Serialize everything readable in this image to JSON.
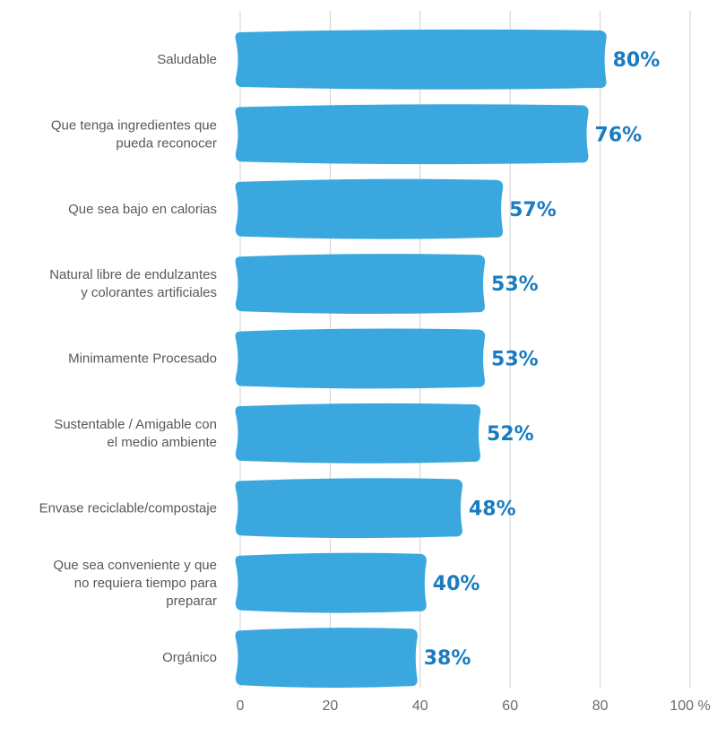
{
  "chart_data": {
    "type": "bar",
    "orientation": "horizontal",
    "categories": [
      [
        "Saludable"
      ],
      [
        "Que tenga ingredientes que",
        "pueda reconocer"
      ],
      [
        "Que sea bajo en calorias"
      ],
      [
        "Natural libre de endulzantes",
        "y colorantes artificiales"
      ],
      [
        "Minimamente Procesado"
      ],
      [
        "Sustentable / Amigable con",
        "el medio ambiente"
      ],
      [
        "Envase reciclable/compostaje"
      ],
      [
        "Que sea conveniente y que",
        "no requiera tiempo para",
        "preparar"
      ],
      [
        "Orgánico"
      ]
    ],
    "values": [
      80,
      76,
      57,
      53,
      53,
      52,
      48,
      40,
      38
    ],
    "value_labels": [
      "80%",
      "76%",
      "57%",
      "53%",
      "53%",
      "52%",
      "48%",
      "40%",
      "38%"
    ],
    "x_ticks": [
      "0",
      "20",
      "40",
      "60",
      "80",
      "100 %"
    ],
    "x_tick_values": [
      0,
      20,
      40,
      60,
      80,
      100
    ],
    "xlim": [
      0,
      100
    ],
    "grid": "vertical",
    "bar_color": "#3aa7df",
    "label_color": "#1a7cc0"
  }
}
